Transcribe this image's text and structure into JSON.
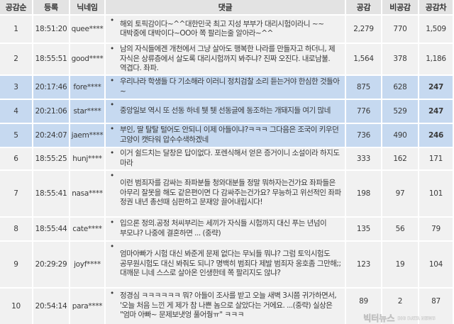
{
  "headers": [
    "공감순",
    "등록",
    "닉네임",
    "댓글",
    "공감",
    "비공감",
    "공감차"
  ],
  "colors": {
    "highlight": "#c6d9f0",
    "row": "#f1f1f1",
    "header": "#e3e3e3"
  },
  "rows": [
    {
      "rank": "1",
      "time": "18:51:20",
      "nick": "quee****",
      "comment": "해외 토픽감이다~^^대한민국 최고 지성 부부가 대리시험이라니 ~~대박중에 대박이다~OO아 쪽 팔리는줄 알아라~^^",
      "likes": "2,279",
      "dislikes": "770",
      "diff": "1,509",
      "highlighted": false
    },
    {
      "rank": "2",
      "time": "18:55:51",
      "nick": "good****",
      "comment": "남의 자식들에겐 개천에서 그냥 살아도 행복한 나라를 만들자고 하더니, 제 자식은 상류층에서 살도록 대리시험까지 봐주냐? 진짜 오진다. 내로남불. 역겹다. 좌파.",
      "likes": "1,564",
      "dislikes": "378",
      "diff": "1,186",
      "highlighted": false
    },
    {
      "rank": "3",
      "time": "20:17:46",
      "nick": "fore****",
      "comment": "우리나라 학생들 다 기소해라 이러니 정치검찰 소리 듣는거야 한심한 것들아~",
      "likes": "875",
      "dislikes": "628",
      "diff": "247",
      "highlighted": true
    },
    {
      "rank": "4",
      "time": "20:21:06",
      "nick": "star****",
      "comment": "중앙일보 역시 또 선동 하네 퉷 퉷 선동글에 동조하는 개돼지들 여기 많네",
      "likes": "776",
      "dislikes": "529",
      "diff": "247",
      "highlighted": true
    },
    {
      "rank": "5",
      "time": "20:24:07",
      "nick": "jaem****",
      "comment": "부인, 딸 탈탈 털어도 안되니 이제 아들이냐?ㅋㅋㅋ 그다음은 조국이 키우던 고양이 캣타워 압수수색하겠네",
      "likes": "736",
      "dislikes": "490",
      "diff": "246",
      "highlighted": true
    },
    {
      "rank": "6",
      "time": "18:55:25",
      "nick": "hunj****",
      "comment": "이거 쉴드치는 달창은 답이없다. 포렌식해서 얻은 증거이니 소설이라 하지도 마라",
      "likes": "333",
      "dislikes": "162",
      "diff": "171",
      "highlighted": false
    },
    {
      "rank": "7",
      "time": "18:55:41",
      "nick": "nasa****",
      "comment": "이런 범죄자를 감싸는 좌파분들 청와대분들 정말 뭐하자는건가요 좌파들은 아무리 잘못을 해도 같은편이면 다 감싸주는건가요? 무능하고 위선적인 좌파 정권 내년 총선때 심판하고 문재앙 끌어내립시다!",
      "likes": "198",
      "dislikes": "97",
      "diff": "101",
      "highlighted": false
    },
    {
      "rank": "8",
      "time": "18:55:44",
      "nick": "cate****",
      "comment": "입으론 정의.공정 처씨부리는 세끼가 자식들 시험까지 대신 푸는 년넘이 부모냐? 나중에 결혼하면 ... (중략)",
      "likes": "135",
      "dislikes": "56",
      "diff": "79",
      "highlighted": false
    },
    {
      "rank": "9",
      "time": "20:29:29",
      "nick": "joyf****",
      "comment": "엄마아빠가 시험 대신 봐준게 문제 없다는 무뇌들 뭐냐? 그럼 토익시험도 공무원시험도 대신 봐줘도 되니? 명백히 범죄다 제발 범죄자 옹호좀 그만해;; 대깨문 니네 스스로 살아온 인생한테 쪽 팔리지도 않냐?",
      "likes": "123",
      "dislikes": "19",
      "diff": "104",
      "highlighted": false
    },
    {
      "rank": "10",
      "time": "20:54:14",
      "nick": "para****",
      "comment": "정경심 ㅋㅋㅋㅋㅋㅋ 뭐? 아들이 조사를 받고 오늘 새벽 3시쯤 귀가하면서, '오늘 처음 느낀 게 제가 참 나쁜 놈으로 살았다는 거에요. ...(중략) 실상은 \"엄마 아빠~ 문제보냇엉 풀어줭ㅠ\" ㅋㅋㅋ",
      "likes": "89",
      "dislikes": "2",
      "diff": "87",
      "highlighted": false
    }
  ],
  "bullet": "•",
  "watermark": {
    "korean": "빅터뉴스",
    "english": "BIG DATA NEWS"
  }
}
